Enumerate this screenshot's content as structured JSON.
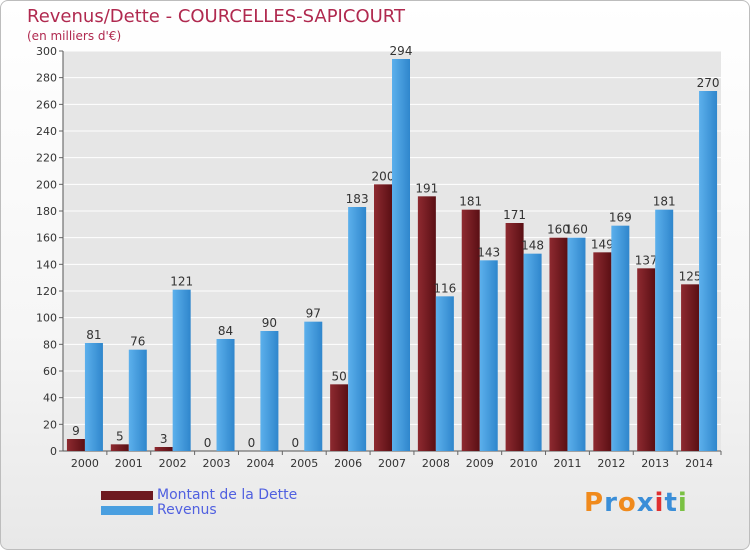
{
  "header": {
    "title": "Revenus/Dette - COURCELLES-SAPICOURT",
    "subtitle": "(en milliers d'€)"
  },
  "colors": {
    "title": "#b0294f",
    "dette": "#7a1f24",
    "revenus": "#4a9fe0",
    "legend_text": "#5060e0",
    "grid": "#ffffff",
    "plot_bg": "#e6e6e6"
  },
  "legend": {
    "items": [
      {
        "label": "Montant de la Dette",
        "color": "#7a1f24"
      },
      {
        "label": "Revenus",
        "color": "#4a9fe0"
      }
    ]
  },
  "logo": {
    "text": "Proxiti",
    "colors": [
      "#f08a1c",
      "#3a8ed8",
      "#f08a1c",
      "#3a8ed8",
      "#e03030",
      "#3a8ed8",
      "#7ac143"
    ]
  },
  "chart_data": {
    "type": "bar",
    "title": "Revenus/Dette - COURCELLES-SAPICOURT",
    "subtitle": "(en milliers d'€)",
    "xlabel": "",
    "ylabel": "",
    "ylim": [
      0,
      300
    ],
    "yticks": [
      0,
      20,
      40,
      60,
      80,
      100,
      120,
      140,
      160,
      180,
      200,
      220,
      240,
      260,
      280,
      300
    ],
    "grid": true,
    "legend_position": "bottom-left",
    "categories": [
      "2000",
      "2001",
      "2002",
      "2003",
      "2004",
      "2005",
      "2006",
      "2007",
      "2008",
      "2009",
      "2010",
      "2011",
      "2012",
      "2013",
      "2014"
    ],
    "series": [
      {
        "name": "Montant de la Dette",
        "values": [
          9,
          5,
          3,
          0,
          0,
          0,
          50,
          200,
          191,
          181,
          171,
          160,
          149,
          137,
          125
        ]
      },
      {
        "name": "Revenus",
        "values": [
          81,
          76,
          121,
          84,
          90,
          97,
          183,
          294,
          116,
          143,
          148,
          160,
          169,
          181,
          270
        ]
      }
    ]
  }
}
